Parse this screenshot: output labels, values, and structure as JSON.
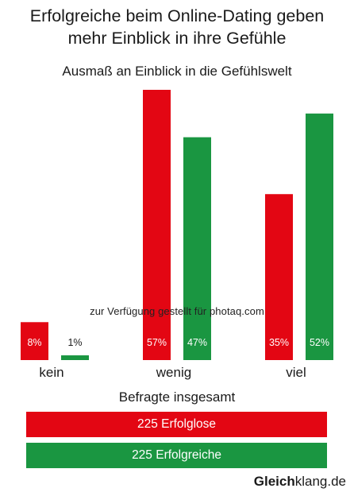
{
  "header": {
    "title": "Erfolgreiche beim Online-Dating geben\nmehr Einblick in ihre Gefühle",
    "subtitle": "Ausmaß an Einblick in die Gefühlswelt"
  },
  "colors": {
    "red": "#e30613",
    "green": "#1a9641"
  },
  "chart_data": {
    "type": "bar",
    "title": "Ausmaß an Einblick in die Gefühlswelt",
    "categories": [
      "kein",
      "wenig",
      "viel"
    ],
    "series": [
      {
        "name": "225 Erfolglose",
        "color": "#e30613",
        "values": [
          8,
          57,
          35
        ],
        "labels": [
          "8%",
          "57%",
          "35%"
        ]
      },
      {
        "name": "225 Erfolgreiche",
        "color": "#1a9641",
        "values": [
          1,
          47,
          52
        ],
        "labels": [
          "1%",
          "47%",
          "52%"
        ]
      }
    ],
    "ylim": [
      0,
      57
    ],
    "grid": false,
    "legend_title": "Befragte insgesamt",
    "legend_placement": "bottom"
  },
  "legend": {
    "title": "Befragte insgesamt",
    "items": [
      "225 Erfolglose",
      "225 Erfolgreiche"
    ]
  },
  "watermark": "zur Verfügung gestellt für photaq.com",
  "brand": {
    "bold": "Gleich",
    "regular": "klang.de"
  }
}
